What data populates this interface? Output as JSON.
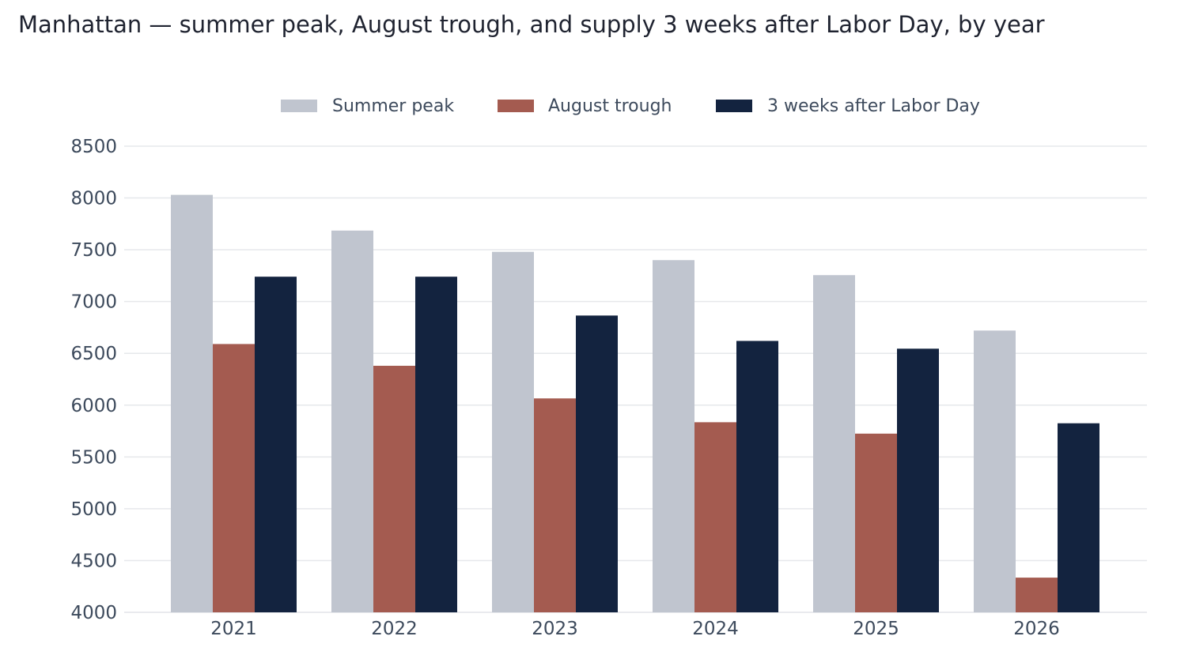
{
  "chart_data": {
    "type": "bar",
    "title": "Manhattan — summer peak, August trough, and supply 3 weeks after Labor Day, by year",
    "categories": [
      "2021",
      "2022",
      "2023",
      "2024",
      "2025",
      "2026"
    ],
    "series": [
      {
        "name": "Summer peak",
        "color": "#c0c5cf",
        "values": [
          8030,
          7685,
          7480,
          7400,
          7255,
          6720
        ]
      },
      {
        "name": "August trough",
        "color": "#a45b50",
        "values": [
          6590,
          6380,
          6065,
          5835,
          5725,
          4335
        ]
      },
      {
        "name": "3 weeks after Labor Day",
        "color": "#13233f",
        "values": [
          7240,
          7240,
          6865,
          6620,
          6545,
          5825
        ]
      }
    ],
    "ylim": [
      4000,
      8500
    ],
    "yticks": [
      4000,
      4500,
      5000,
      5500,
      6000,
      6500,
      7000,
      7500,
      8000,
      8500
    ],
    "xlabel": "",
    "ylabel": "",
    "grid": true,
    "legend_position": "top-center"
  }
}
